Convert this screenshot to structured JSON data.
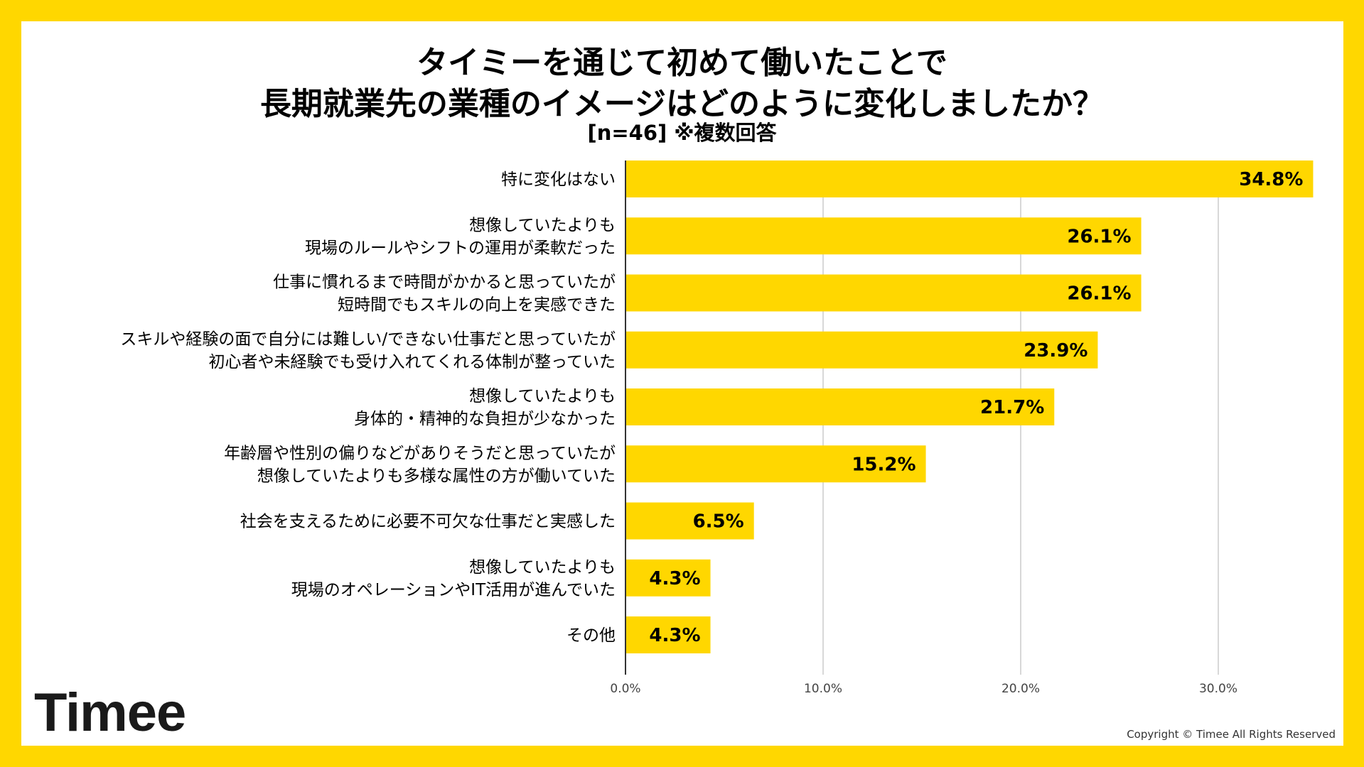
{
  "header": {
    "title_line1": "タイミーを通じて初めて働いたことで",
    "title_line2": "長期就業先の業種のイメージはどのように変化しましたか？",
    "subtitle": "[n=46]  ※複数回答"
  },
  "footer": {
    "logo": "Timee",
    "copyright": "Copyright © Timee All Rights Reserved"
  },
  "colors": {
    "frame": "#FFD700",
    "bar": "#FFD700",
    "grid": "#cccccc",
    "text": "#000000"
  },
  "chart_data": {
    "type": "bar",
    "orientation": "horizontal",
    "title": "タイミーを通じて初めて働いたことで長期就業先の業種のイメージはどのように変化しましたか？",
    "xlabel": "",
    "ylabel": "",
    "xlim": [
      0,
      35
    ],
    "x_ticks": [
      {
        "value": 0,
        "label": "0.0%"
      },
      {
        "value": 10,
        "label": "10.0%"
      },
      {
        "value": 20,
        "label": "20.0%"
      },
      {
        "value": 30,
        "label": "30.0%"
      }
    ],
    "grid": true,
    "categories": [
      [
        "特に変化はない"
      ],
      [
        "想像していたよりも",
        "現場のルールやシフトの運用が柔軟だった"
      ],
      [
        "仕事に慣れるまで時間がかかると思っていたが",
        "短時間でもスキルの向上を実感できた"
      ],
      [
        "スキルや経験の面で自分には難しい/できない仕事だと思っていたが",
        "初心者や未経験でも受け入れてくれる体制が整っていた"
      ],
      [
        "想像していたよりも",
        "身体的・精神的な負担が少なかった"
      ],
      [
        "年齢層や性別の偏りなどがありそうだと思っていたが",
        "想像していたよりも多様な属性の方が働いていた"
      ],
      [
        "社会を支えるために必要不可欠な仕事だと実感した"
      ],
      [
        "想像していたよりも",
        "現場のオペレーションやIT活用が進んでいた"
      ],
      [
        "その他"
      ]
    ],
    "values": [
      34.8,
      26.1,
      26.1,
      23.9,
      21.7,
      15.2,
      6.5,
      4.3,
      4.3
    ],
    "value_labels": [
      "34.8%",
      "26.1%",
      "26.1%",
      "23.9%",
      "21.7%",
      "15.2%",
      "6.5%",
      "4.3%",
      "4.3%"
    ]
  }
}
